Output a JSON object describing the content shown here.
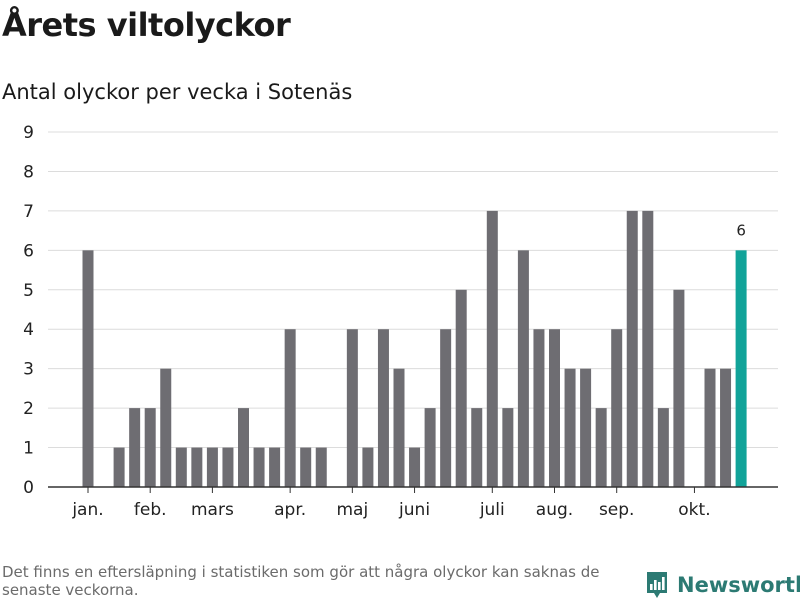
{
  "header": {
    "title": "Årets viltolyckor",
    "subtitle": "Antal olyckor per vecka i Sotenäs"
  },
  "footer": {
    "note": "Det finns en eftersläpning i statistiken som gör att några olyckor kan saknas de senaste veckorna.",
    "brand": "Newsworthy"
  },
  "colors": {
    "bar": "#6e6d72",
    "highlight": "#11a399",
    "grid": "#dcdcdc",
    "axis": "#333333",
    "brand": "#2c7a73"
  },
  "chart_data": {
    "type": "bar",
    "title": "Antal olyckor per vecka i Sotenäs",
    "xlabel": "",
    "ylabel": "",
    "ylim": [
      0,
      9
    ],
    "yticks": [
      0,
      1,
      2,
      3,
      4,
      5,
      6,
      7,
      8,
      9
    ],
    "grid": true,
    "weeks": [
      1,
      2,
      3,
      4,
      5,
      6,
      7,
      8,
      9,
      10,
      11,
      12,
      13,
      14,
      15,
      16,
      17,
      18,
      19,
      20,
      21,
      22,
      23,
      24,
      25,
      26,
      27,
      28,
      29,
      30,
      31,
      32,
      33,
      34,
      35,
      36,
      37,
      38,
      39,
      40,
      41,
      42,
      43
    ],
    "values": [
      6,
      0,
      1,
      2,
      2,
      3,
      1,
      1,
      1,
      1,
      2,
      1,
      1,
      4,
      1,
      1,
      0,
      4,
      1,
      4,
      3,
      1,
      2,
      4,
      5,
      2,
      7,
      2,
      6,
      4,
      4,
      3,
      3,
      2,
      4,
      7,
      7,
      2,
      5,
      0,
      3,
      3,
      6
    ],
    "highlight_index": 42,
    "data_label": "6",
    "month_labels": [
      {
        "label": "jan.",
        "week": 1
      },
      {
        "label": "feb.",
        "week": 5
      },
      {
        "label": "mars",
        "week": 9
      },
      {
        "label": "apr.",
        "week": 14
      },
      {
        "label": "maj",
        "week": 18
      },
      {
        "label": "juni",
        "week": 22
      },
      {
        "label": "juli",
        "week": 27
      },
      {
        "label": "aug.",
        "week": 31
      },
      {
        "label": "sep.",
        "week": 35
      },
      {
        "label": "okt.",
        "week": 40
      }
    ]
  }
}
